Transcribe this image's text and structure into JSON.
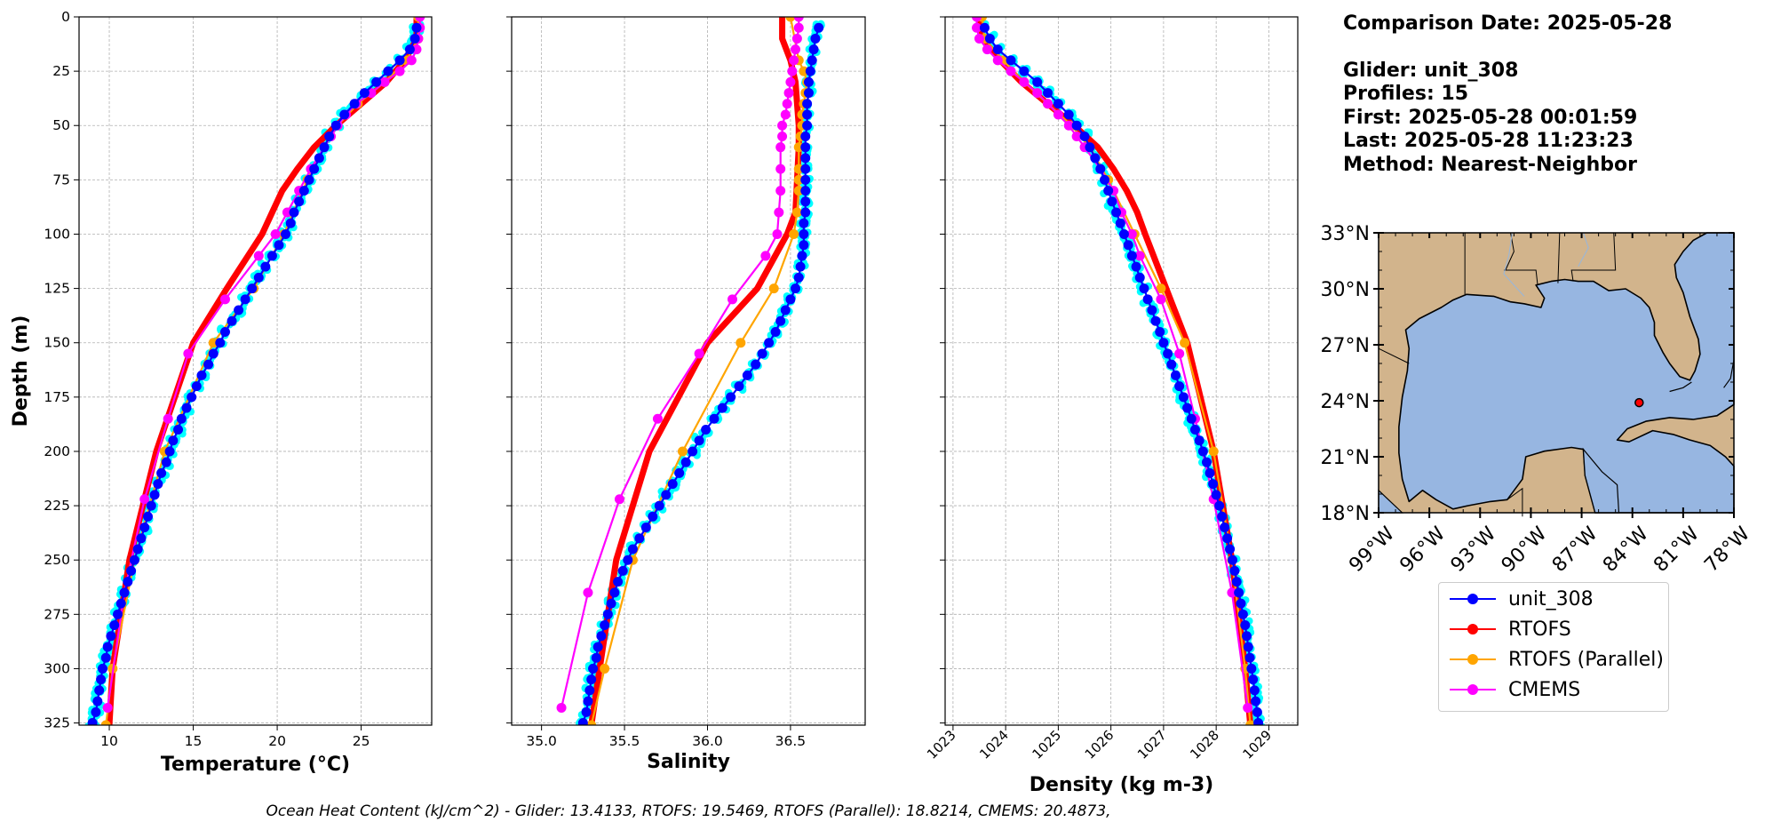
{
  "info": {
    "date_line": "Comparison Date: 2025-05-28",
    "glider_line": "Glider: unit_308",
    "profiles_line": "Profiles: 15",
    "first_line": "First: 2025-05-28 00:01:59",
    "last_line": "Last: 2025-05-28 11:23:23",
    "method_line": "Method: Nearest-Neighbor"
  },
  "footer": {
    "ohc_text": "Ocean Heat Content (kJ/cm^2) - Glider: 13.4133,  RTOFS: 19.5469,  RTOFS (Parallel): 18.8214,  CMEMS: 20.4873,"
  },
  "legend": [
    {
      "label": "unit_308",
      "color": "#0000ff"
    },
    {
      "label": "RTOFS",
      "color": "#ff0000"
    },
    {
      "label": "RTOFS (Parallel)",
      "color": "#ffa500"
    },
    {
      "label": "CMEMS",
      "color": "#ff00ff"
    }
  ],
  "map": {
    "lat_ticks": [
      "33°N",
      "30°N",
      "27°N",
      "24°N",
      "21°N",
      "18°N"
    ],
    "lon_ticks": [
      "99°W",
      "96°W",
      "93°W",
      "90°W",
      "87°W",
      "84°W",
      "81°W",
      "78°W"
    ],
    "lat_range": [
      18,
      33
    ],
    "lon_range": [
      -99,
      -78
    ],
    "glider_position": {
      "lat": 23.9,
      "lon": -83.6
    },
    "land_color": "#d2b48c",
    "ocean_color": "#97b6e1"
  },
  "chart_data": [
    {
      "type": "line",
      "xlabel": "Temperature (°C)",
      "ylabel": "Depth (m)",
      "xlim": [
        8.2,
        29.2
      ],
      "ylim": [
        326,
        0
      ],
      "xticks": [
        10,
        15,
        20,
        25
      ],
      "yticks": [
        0,
        25,
        50,
        75,
        100,
        125,
        150,
        175,
        200,
        225,
        250,
        275,
        300,
        325
      ],
      "grid": true,
      "glider_profiles_color": "#00ffff",
      "series": [
        {
          "name": "unit_308",
          "color": "#0000ff",
          "depth": [
            5,
            10,
            15,
            20,
            25,
            30,
            35,
            40,
            45,
            50,
            55,
            60,
            65,
            70,
            75,
            80,
            85,
            90,
            95,
            100,
            105,
            110,
            115,
            120,
            125,
            130,
            135,
            140,
            145,
            150,
            155,
            160,
            165,
            170,
            175,
            180,
            185,
            190,
            195,
            200,
            205,
            210,
            215,
            220,
            225,
            230,
            235,
            240,
            245,
            250,
            255,
            260,
            265,
            270,
            275,
            280,
            285,
            290,
            295,
            300,
            305,
            310,
            315,
            320,
            325
          ],
          "values": [
            28.3,
            28.2,
            27.9,
            27.3,
            26.6,
            25.9,
            25.2,
            24.6,
            24.0,
            23.5,
            23.1,
            22.8,
            22.5,
            22.2,
            21.9,
            21.6,
            21.3,
            21.0,
            20.8,
            20.5,
            20.1,
            19.7,
            19.3,
            18.9,
            18.5,
            18.1,
            17.7,
            17.3,
            16.9,
            16.6,
            16.2,
            15.9,
            15.5,
            15.2,
            14.9,
            14.6,
            14.3,
            14.1,
            13.8,
            13.6,
            13.4,
            13.1,
            12.9,
            12.7,
            12.5,
            12.3,
            12.1,
            11.9,
            11.7,
            11.5,
            11.3,
            11.1,
            10.9,
            10.7,
            10.5,
            10.3,
            10.1,
            9.9,
            9.8,
            9.6,
            9.5,
            9.4,
            9.3,
            9.2,
            9.0
          ]
        },
        {
          "name": "RTOFS",
          "color": "#ff0000",
          "depth": [
            0,
            10,
            20,
            30,
            40,
            50,
            60,
            70,
            80,
            90,
            100,
            125,
            150,
            200,
            250,
            300,
            326
          ],
          "values": [
            28.3,
            28.3,
            27.6,
            26.5,
            25.0,
            23.5,
            22.2,
            21.2,
            20.3,
            19.7,
            19.1,
            17.0,
            15.0,
            12.8,
            11.2,
            10.2,
            10.0
          ]
        },
        {
          "name": "RTOFS (Parallel)",
          "color": "#ffa500",
          "depth": [
            0,
            10,
            20,
            30,
            40,
            50,
            60,
            75,
            100,
            125,
            150,
            200,
            250,
            300,
            326
          ],
          "values": [
            28.4,
            28.4,
            27.7,
            26.4,
            24.8,
            23.6,
            22.8,
            21.8,
            20.4,
            18.6,
            16.2,
            13.3,
            11.5,
            10.2,
            9.8
          ]
        },
        {
          "name": "CMEMS",
          "color": "#ff00ff",
          "depth": [
            0,
            5,
            10,
            15,
            20,
            25,
            30,
            35,
            40,
            45,
            50,
            55,
            60,
            70,
            80,
            90,
            100,
            110,
            130,
            155,
            185,
            222,
            265,
            318
          ],
          "values": [
            28.5,
            28.5,
            28.4,
            28.3,
            28.0,
            27.3,
            26.4,
            25.6,
            24.7,
            24.1,
            23.6,
            23.2,
            22.8,
            22.0,
            21.3,
            20.6,
            19.9,
            18.9,
            16.9,
            14.7,
            13.5,
            12.1,
            10.9,
            9.9
          ]
        }
      ]
    },
    {
      "type": "line",
      "xlabel": "Salinity",
      "xlim": [
        34.82,
        36.95
      ],
      "ylim": [
        326,
        0
      ],
      "xticks": [
        35.0,
        35.5,
        36.0,
        36.5
      ],
      "grid": true,
      "glider_profiles_color": "#00ffff",
      "series": [
        {
          "name": "unit_308",
          "color": "#0000ff",
          "depth": [
            5,
            10,
            15,
            20,
            25,
            30,
            35,
            40,
            45,
            50,
            55,
            60,
            65,
            70,
            75,
            80,
            85,
            90,
            95,
            100,
            105,
            110,
            115,
            120,
            125,
            130,
            135,
            140,
            145,
            150,
            155,
            160,
            165,
            170,
            175,
            180,
            185,
            190,
            195,
            200,
            205,
            210,
            215,
            220,
            225,
            230,
            235,
            240,
            245,
            250,
            255,
            260,
            265,
            270,
            275,
            280,
            285,
            290,
            295,
            300,
            305,
            310,
            315,
            320,
            325
          ],
          "values": [
            36.67,
            36.65,
            36.64,
            36.63,
            36.62,
            36.61,
            36.61,
            36.6,
            36.6,
            36.6,
            36.59,
            36.59,
            36.59,
            36.59,
            36.59,
            36.59,
            36.59,
            36.59,
            36.58,
            36.58,
            36.58,
            36.57,
            36.56,
            36.55,
            36.53,
            36.5,
            36.47,
            36.44,
            36.41,
            36.37,
            36.33,
            36.29,
            36.24,
            36.19,
            36.14,
            36.09,
            36.04,
            35.99,
            35.95,
            35.91,
            35.87,
            35.83,
            35.79,
            35.75,
            35.71,
            35.67,
            35.63,
            35.59,
            35.55,
            35.52,
            35.49,
            35.46,
            35.44,
            35.42,
            35.4,
            35.38,
            35.36,
            35.34,
            35.33,
            35.31,
            35.3,
            35.29,
            35.28,
            35.27,
            35.25
          ]
        },
        {
          "name": "RTOFS",
          "color": "#ff0000",
          "depth": [
            0,
            5,
            10,
            20,
            30,
            40,
            50,
            60,
            75,
            90,
            100,
            125,
            150,
            200,
            250,
            300,
            326
          ],
          "values": [
            36.45,
            36.45,
            36.45,
            36.5,
            36.53,
            36.54,
            36.55,
            36.55,
            36.54,
            36.53,
            36.48,
            36.3,
            36.0,
            35.65,
            35.45,
            35.35,
            35.3
          ]
        },
        {
          "name": "RTOFS (Parallel)",
          "color": "#ffa500",
          "depth": [
            0,
            20,
            25,
            30,
            35,
            40,
            45,
            50,
            55,
            60,
            70,
            75,
            80,
            90,
            100,
            125,
            150,
            200,
            250,
            300,
            326
          ],
          "values": [
            36.5,
            36.55,
            36.58,
            36.6,
            36.59,
            36.58,
            36.57,
            36.57,
            36.56,
            36.55,
            36.55,
            36.55,
            36.55,
            36.54,
            36.52,
            36.4,
            36.2,
            35.85,
            35.55,
            35.38,
            35.3
          ]
        },
        {
          "name": "CMEMS",
          "color": "#ff00ff",
          "depth": [
            0,
            5,
            10,
            15,
            20,
            25,
            30,
            35,
            40,
            45,
            50,
            55,
            60,
            70,
            80,
            90,
            100,
            110,
            130,
            155,
            185,
            222,
            265,
            318
          ],
          "values": [
            36.55,
            36.55,
            36.54,
            36.53,
            36.52,
            36.51,
            36.5,
            36.49,
            36.48,
            36.47,
            36.45,
            36.45,
            36.44,
            36.44,
            36.44,
            36.43,
            36.42,
            36.35,
            36.15,
            35.95,
            35.7,
            35.47,
            35.28,
            35.12
          ]
        }
      ]
    },
    {
      "type": "line",
      "xlabel": "Density (kg m-3)",
      "xlim": [
        1022.85,
        1029.55
      ],
      "ylim": [
        326,
        0
      ],
      "xticks": [
        1023,
        1024,
        1025,
        1026,
        1027,
        1028,
        1029
      ],
      "grid": true,
      "glider_profiles_color": "#00ffff",
      "series": [
        {
          "name": "unit_308",
          "color": "#0000ff",
          "depth": [
            5,
            10,
            15,
            20,
            25,
            30,
            35,
            40,
            45,
            50,
            55,
            60,
            65,
            70,
            75,
            80,
            85,
            90,
            95,
            100,
            105,
            110,
            115,
            120,
            125,
            130,
            135,
            140,
            145,
            150,
            155,
            160,
            165,
            170,
            175,
            180,
            185,
            190,
            195,
            200,
            205,
            210,
            215,
            220,
            225,
            230,
            235,
            240,
            245,
            250,
            255,
            260,
            265,
            270,
            275,
            280,
            285,
            290,
            295,
            300,
            305,
            310,
            315,
            320,
            325
          ],
          "values": [
            1023.6,
            1023.7,
            1023.85,
            1024.1,
            1024.35,
            1024.6,
            1024.8,
            1025.0,
            1025.2,
            1025.35,
            1025.5,
            1025.6,
            1025.7,
            1025.8,
            1025.88,
            1025.95,
            1026.02,
            1026.1,
            1026.18,
            1026.25,
            1026.33,
            1026.4,
            1026.48,
            1026.55,
            1026.63,
            1026.7,
            1026.78,
            1026.85,
            1026.93,
            1027.0,
            1027.08,
            1027.15,
            1027.23,
            1027.3,
            1027.38,
            1027.45,
            1027.53,
            1027.6,
            1027.68,
            1027.75,
            1027.82,
            1027.88,
            1027.94,
            1028.0,
            1028.06,
            1028.11,
            1028.16,
            1028.21,
            1028.26,
            1028.31,
            1028.35,
            1028.39,
            1028.43,
            1028.47,
            1028.51,
            1028.55,
            1028.58,
            1028.61,
            1028.64,
            1028.67,
            1028.7,
            1028.73,
            1028.75,
            1028.78,
            1028.8
          ]
        },
        {
          "name": "RTOFS",
          "color": "#ff0000",
          "depth": [
            0,
            10,
            20,
            30,
            40,
            50,
            60,
            70,
            80,
            90,
            100,
            125,
            150,
            200,
            250,
            300,
            326
          ],
          "values": [
            1023.5,
            1023.55,
            1023.9,
            1024.3,
            1024.8,
            1025.3,
            1025.75,
            1026.05,
            1026.3,
            1026.5,
            1026.65,
            1027.05,
            1027.45,
            1027.95,
            1028.3,
            1028.55,
            1028.65
          ]
        },
        {
          "name": "RTOFS (Parallel)",
          "color": "#ffa500",
          "depth": [
            0,
            10,
            20,
            30,
            40,
            50,
            60,
            75,
            100,
            125,
            150,
            200,
            250,
            300,
            326
          ],
          "values": [
            1023.55,
            1023.6,
            1023.95,
            1024.35,
            1024.8,
            1025.25,
            1025.6,
            1025.95,
            1026.45,
            1026.95,
            1027.4,
            1027.95,
            1028.3,
            1028.55,
            1028.65
          ]
        },
        {
          "name": "CMEMS",
          "color": "#ff00ff",
          "depth": [
            0,
            5,
            10,
            15,
            20,
            25,
            30,
            35,
            40,
            45,
            50,
            55,
            60,
            70,
            80,
            90,
            100,
            110,
            130,
            155,
            185,
            222,
            265,
            318
          ],
          "values": [
            1023.45,
            1023.45,
            1023.5,
            1023.65,
            1023.85,
            1024.1,
            1024.35,
            1024.6,
            1024.8,
            1025.0,
            1025.2,
            1025.35,
            1025.5,
            1025.8,
            1026.05,
            1026.2,
            1026.4,
            1026.55,
            1026.95,
            1027.3,
            1027.6,
            1027.95,
            1028.3,
            1028.6
          ]
        }
      ]
    }
  ]
}
